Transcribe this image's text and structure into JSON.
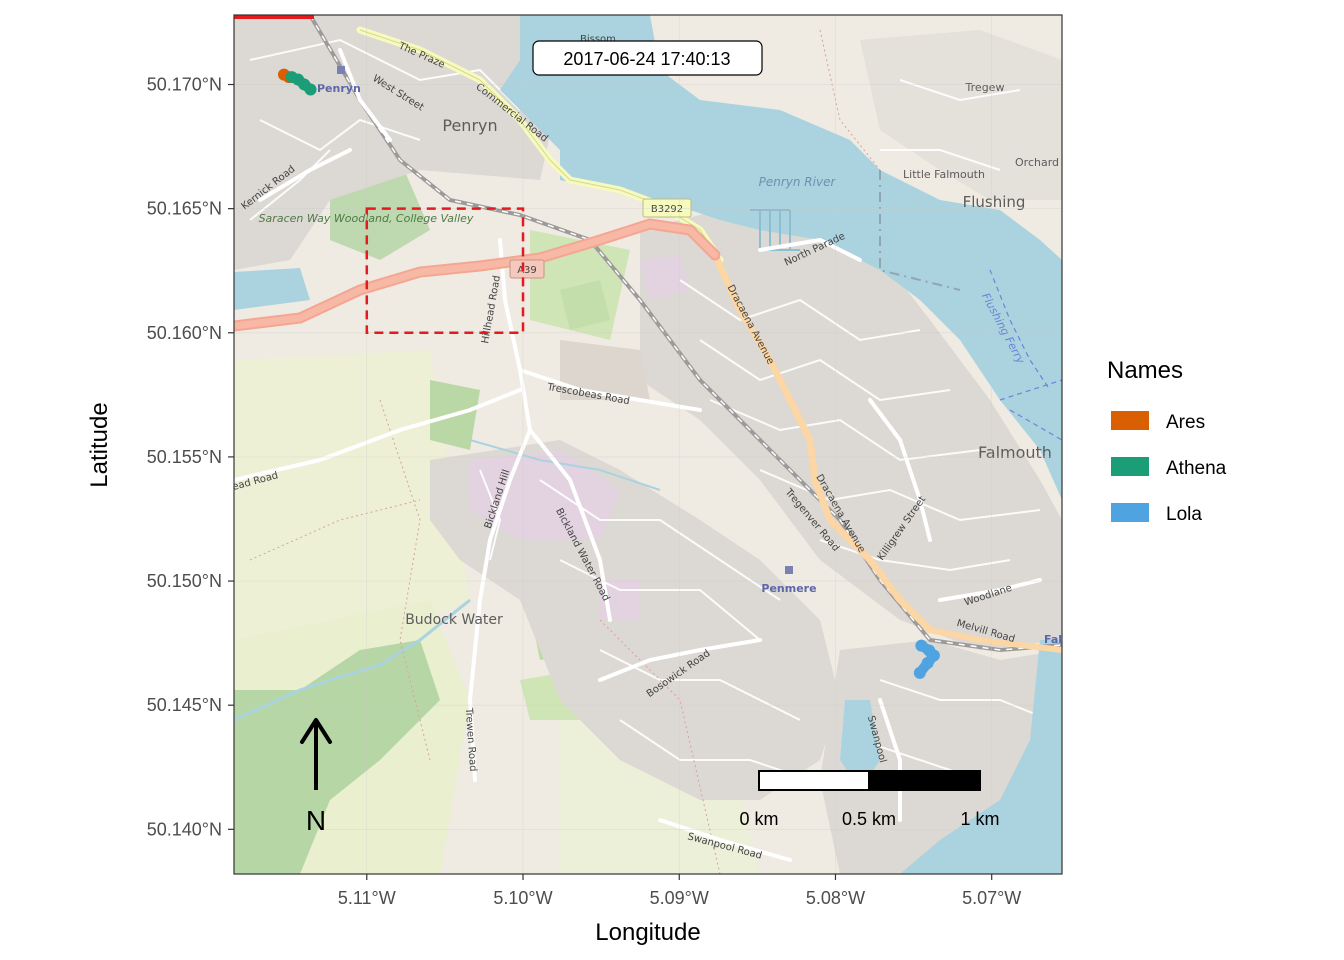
{
  "plot": {
    "timestamp": "2017-06-24 17:40:13",
    "xlabel": "Longitude",
    "ylabel": "Latitude",
    "north_label": "N"
  },
  "chart_data": {
    "type": "scatter",
    "title": "",
    "xlabel": "Longitude",
    "ylabel": "Latitude",
    "xlim": [
      -5.1185,
      -5.0655
    ],
    "ylim": [
      50.1382,
      50.1728
    ],
    "x_ticks": [
      {
        "value": -5.11,
        "label": "5.11°W"
      },
      {
        "value": -5.1,
        "label": "5.10°W"
      },
      {
        "value": -5.09,
        "label": "5.09°W"
      },
      {
        "value": -5.08,
        "label": "5.08°W"
      },
      {
        "value": -5.07,
        "label": "5.07°W"
      }
    ],
    "y_ticks": [
      {
        "value": 50.17,
        "label": "50.170°N"
      },
      {
        "value": 50.165,
        "label": "50.165°N"
      },
      {
        "value": 50.16,
        "label": "50.160°N"
      },
      {
        "value": 50.155,
        "label": "50.155°N"
      },
      {
        "value": 50.15,
        "label": "50.150°N"
      },
      {
        "value": 50.145,
        "label": "50.145°N"
      },
      {
        "value": 50.14,
        "label": "50.140°N"
      }
    ],
    "highlight_box": {
      "x": [
        -5.11,
        -5.1
      ],
      "y": [
        50.16,
        50.165
      ],
      "color": "#e41a1c"
    },
    "legend": {
      "title": "Names",
      "placement": "right",
      "entries": [
        {
          "name": "Ares",
          "color": "#d95f02"
        },
        {
          "name": "Athena",
          "color": "#1b9e77"
        },
        {
          "name": "Lola",
          "color": "#4ea3e0"
        }
      ]
    },
    "series": [
      {
        "name": "Ares",
        "color": "#d95f02",
        "points": [
          [
            -5.1153,
            50.1704
          ],
          [
            -5.115,
            50.1703
          ]
        ]
      },
      {
        "name": "Athena",
        "color": "#1b9e77",
        "points": [
          [
            -5.1148,
            50.1703
          ],
          [
            -5.1144,
            50.1702
          ],
          [
            -5.114,
            50.17
          ],
          [
            -5.1136,
            50.1698
          ]
        ]
      },
      {
        "name": "Lola",
        "color": "#4ea3e0",
        "points": [
          [
            -5.0745,
            50.1474
          ],
          [
            -5.074,
            50.1472
          ],
          [
            -5.0737,
            50.147
          ],
          [
            -5.0741,
            50.1467
          ],
          [
            -5.0746,
            50.1463
          ]
        ]
      }
    ],
    "scale_bar": {
      "labels": [
        "0 km",
        "0.5 km",
        "1 km"
      ]
    }
  },
  "map_labels": {
    "places": [
      {
        "text": "Penryn",
        "class": "major"
      },
      {
        "text": "Falmouth",
        "class": "major"
      },
      {
        "text": "Flushing",
        "class": "major"
      },
      {
        "text": "Budock Water",
        "class": "major"
      },
      {
        "text": "Little Falmouth",
        "class": "minor"
      },
      {
        "text": "Tregew",
        "class": "minor"
      },
      {
        "text": "Orchard",
        "class": "minor"
      },
      {
        "text": "Penryn",
        "class": "station"
      },
      {
        "text": "Penmere",
        "class": "station"
      },
      {
        "text": "Fal",
        "class": "station"
      },
      {
        "text": "Penryn River",
        "class": "water"
      },
      {
        "text": "Flushing Ferry",
        "class": "water"
      },
      {
        "text": "Saracen Way Woodland, College Valley",
        "class": "park"
      }
    ],
    "roads": [
      "The Praze",
      "West Street",
      "Commercial Road",
      "Kernick Road",
      "B3292",
      "A39",
      "North Parade",
      "Dracaena Avenue",
      "Hillhead Road",
      "Trescobeas Road",
      "Bickland Hill",
      "Bickland Water Road",
      "Tregenver Road",
      "Killigrew Street",
      "Woodlane",
      "Melvill Road",
      "Bosowick Road",
      "Trewen Road",
      "Swanpool Road",
      "Swanpool",
      "Bissom",
      "ead Road"
    ]
  }
}
